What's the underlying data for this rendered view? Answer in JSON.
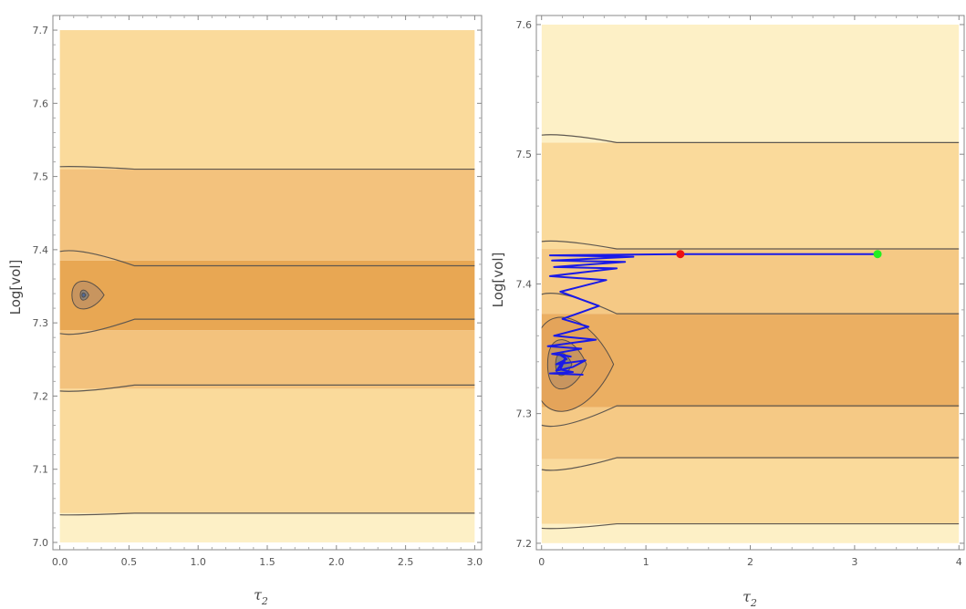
{
  "chart_data": [
    {
      "type": "contour",
      "xlabel": "τ",
      "xlabel_subscript": "2",
      "ylabel": "Log[vol]",
      "xlim": [
        -0.05,
        3.05
      ],
      "ylim": [
        6.99,
        7.72
      ],
      "x_ticks": [
        0.0,
        0.5,
        1.0,
        1.5,
        2.0,
        2.5,
        3.0
      ],
      "x_tick_labels": [
        "0.0",
        "0.5",
        "1.0",
        "1.5",
        "2.0",
        "2.5",
        "3.0"
      ],
      "y_ticks": [
        7.0,
        7.1,
        7.2,
        7.3,
        7.4,
        7.5,
        7.6,
        7.7
      ],
      "y_tick_labels": [
        "7.0",
        "7.1",
        "7.2",
        "7.3",
        "7.4",
        "7.5",
        "7.6",
        "7.7"
      ],
      "data_region": {
        "x": [
          0.0,
          3.0
        ],
        "y": [
          7.0,
          7.7
        ]
      },
      "bands": [
        {
          "y_bottom": 7.0,
          "y_top": 7.04,
          "color": "#FDF0C6"
        },
        {
          "y_bottom": 7.04,
          "y_top": 7.21,
          "color": "#FADA9B"
        },
        {
          "y_bottom": 7.21,
          "y_top": 7.29,
          "color": "#F3C27D"
        },
        {
          "y_bottom": 7.29,
          "y_top": 7.385,
          "color": "#E8A753"
        },
        {
          "y_bottom": 7.385,
          "y_top": 7.51,
          "color": "#F3C27D"
        },
        {
          "y_bottom": 7.51,
          "y_top": 7.7,
          "color": "#FADA9B"
        }
      ],
      "contour_lines": [
        {
          "y": 7.04,
          "y_left": 7.038
        },
        {
          "y": 7.215,
          "y_left": 7.208
        },
        {
          "y": 7.305,
          "y_left": 7.288
        },
        {
          "y": 7.378,
          "y_left": 7.395
        },
        {
          "y": 7.51,
          "y_left": 7.513
        }
      ],
      "minimum": {
        "x": 0.17,
        "y": 7.338
      },
      "min_rings": [
        {
          "rx": 0.15,
          "ry": 0.022,
          "color": "#C8955F"
        },
        {
          "rx": 0.04,
          "ry": 0.008,
          "color": "#8F8478"
        },
        {
          "rx": 0.018,
          "ry": 0.0035,
          "color": "#4F6A9A"
        }
      ]
    },
    {
      "type": "contour",
      "xlabel": "τ",
      "xlabel_subscript": "2",
      "ylabel": "Log[vol]",
      "xlim": [
        -0.05,
        4.05
      ],
      "ylim": [
        7.195,
        7.607
      ],
      "x_ticks": [
        0,
        1,
        2,
        3,
        4
      ],
      "x_tick_labels": [
        "0",
        "1",
        "2",
        "3",
        "4"
      ],
      "y_ticks": [
        7.2,
        7.3,
        7.4,
        7.5,
        7.6
      ],
      "y_tick_labels": [
        "7.2",
        "7.3",
        "7.4",
        "7.5",
        "7.6"
      ],
      "data_region": {
        "x": [
          0.0,
          4.0
        ],
        "y": [
          7.2,
          7.6
        ]
      },
      "bands": [
        {
          "y_bottom": 7.2,
          "y_top": 7.215,
          "color": "#FDF0C6"
        },
        {
          "y_bottom": 7.215,
          "y_top": 7.265,
          "color": "#FADA9B"
        },
        {
          "y_bottom": 7.265,
          "y_top": 7.305,
          "color": "#F5C985"
        },
        {
          "y_bottom": 7.305,
          "y_top": 7.377,
          "color": "#EBAF62"
        },
        {
          "y_bottom": 7.377,
          "y_top": 7.427,
          "color": "#F5C985"
        },
        {
          "y_bottom": 7.427,
          "y_top": 7.509,
          "color": "#FADA9B"
        },
        {
          "y_bottom": 7.509,
          "y_top": 7.6,
          "color": "#FDF0C6"
        }
      ],
      "contour_lines": [
        {
          "y": 7.215,
          "y_left": 7.212
        },
        {
          "y": 7.266,
          "y_left": 7.258
        },
        {
          "y": 7.306,
          "y_left": 7.293
        },
        {
          "y": 7.377,
          "y_left": 7.39
        },
        {
          "y": 7.427,
          "y_left": 7.432
        },
        {
          "y": 7.509,
          "y_left": 7.514
        }
      ],
      "minimum": {
        "x": 0.19,
        "y": 7.338
      },
      "min_rings": [
        {
          "rx": 0.5,
          "ry": 0.042,
          "color": "#E4A45A"
        },
        {
          "rx": 0.24,
          "ry": 0.022,
          "color": "#C8955F"
        },
        {
          "rx": 0.1,
          "ry": 0.01,
          "color": "#8F8478"
        }
      ],
      "path": {
        "color": "#1A1AE6",
        "points": [
          [
            3.22,
            7.423
          ],
          [
            1.33,
            7.423
          ],
          [
            0.08,
            7.422
          ],
          [
            0.88,
            7.421
          ],
          [
            0.1,
            7.418
          ],
          [
            0.8,
            7.417
          ],
          [
            0.12,
            7.413
          ],
          [
            0.72,
            7.412
          ],
          [
            0.08,
            7.406
          ],
          [
            0.62,
            7.403
          ],
          [
            0.18,
            7.394
          ],
          [
            0.55,
            7.383
          ],
          [
            0.2,
            7.373
          ],
          [
            0.45,
            7.367
          ],
          [
            0.12,
            7.36
          ],
          [
            0.52,
            7.357
          ],
          [
            0.06,
            7.352
          ],
          [
            0.38,
            7.35
          ],
          [
            0.1,
            7.346
          ],
          [
            0.28,
            7.344
          ],
          [
            0.16,
            7.346
          ],
          [
            0.24,
            7.342
          ],
          [
            0.14,
            7.338
          ],
          [
            0.42,
            7.341
          ],
          [
            0.3,
            7.336
          ],
          [
            0.14,
            7.333
          ],
          [
            0.22,
            7.34
          ],
          [
            0.16,
            7.335
          ],
          [
            0.23,
            7.343
          ],
          [
            0.18,
            7.334
          ],
          [
            0.3,
            7.332
          ],
          [
            0.08,
            7.331
          ],
          [
            0.4,
            7.33
          ]
        ]
      },
      "markers": [
        {
          "x": 1.33,
          "y": 7.423,
          "color": "#EE1111"
        },
        {
          "x": 3.22,
          "y": 7.423,
          "color": "#22EE22"
        }
      ]
    }
  ]
}
